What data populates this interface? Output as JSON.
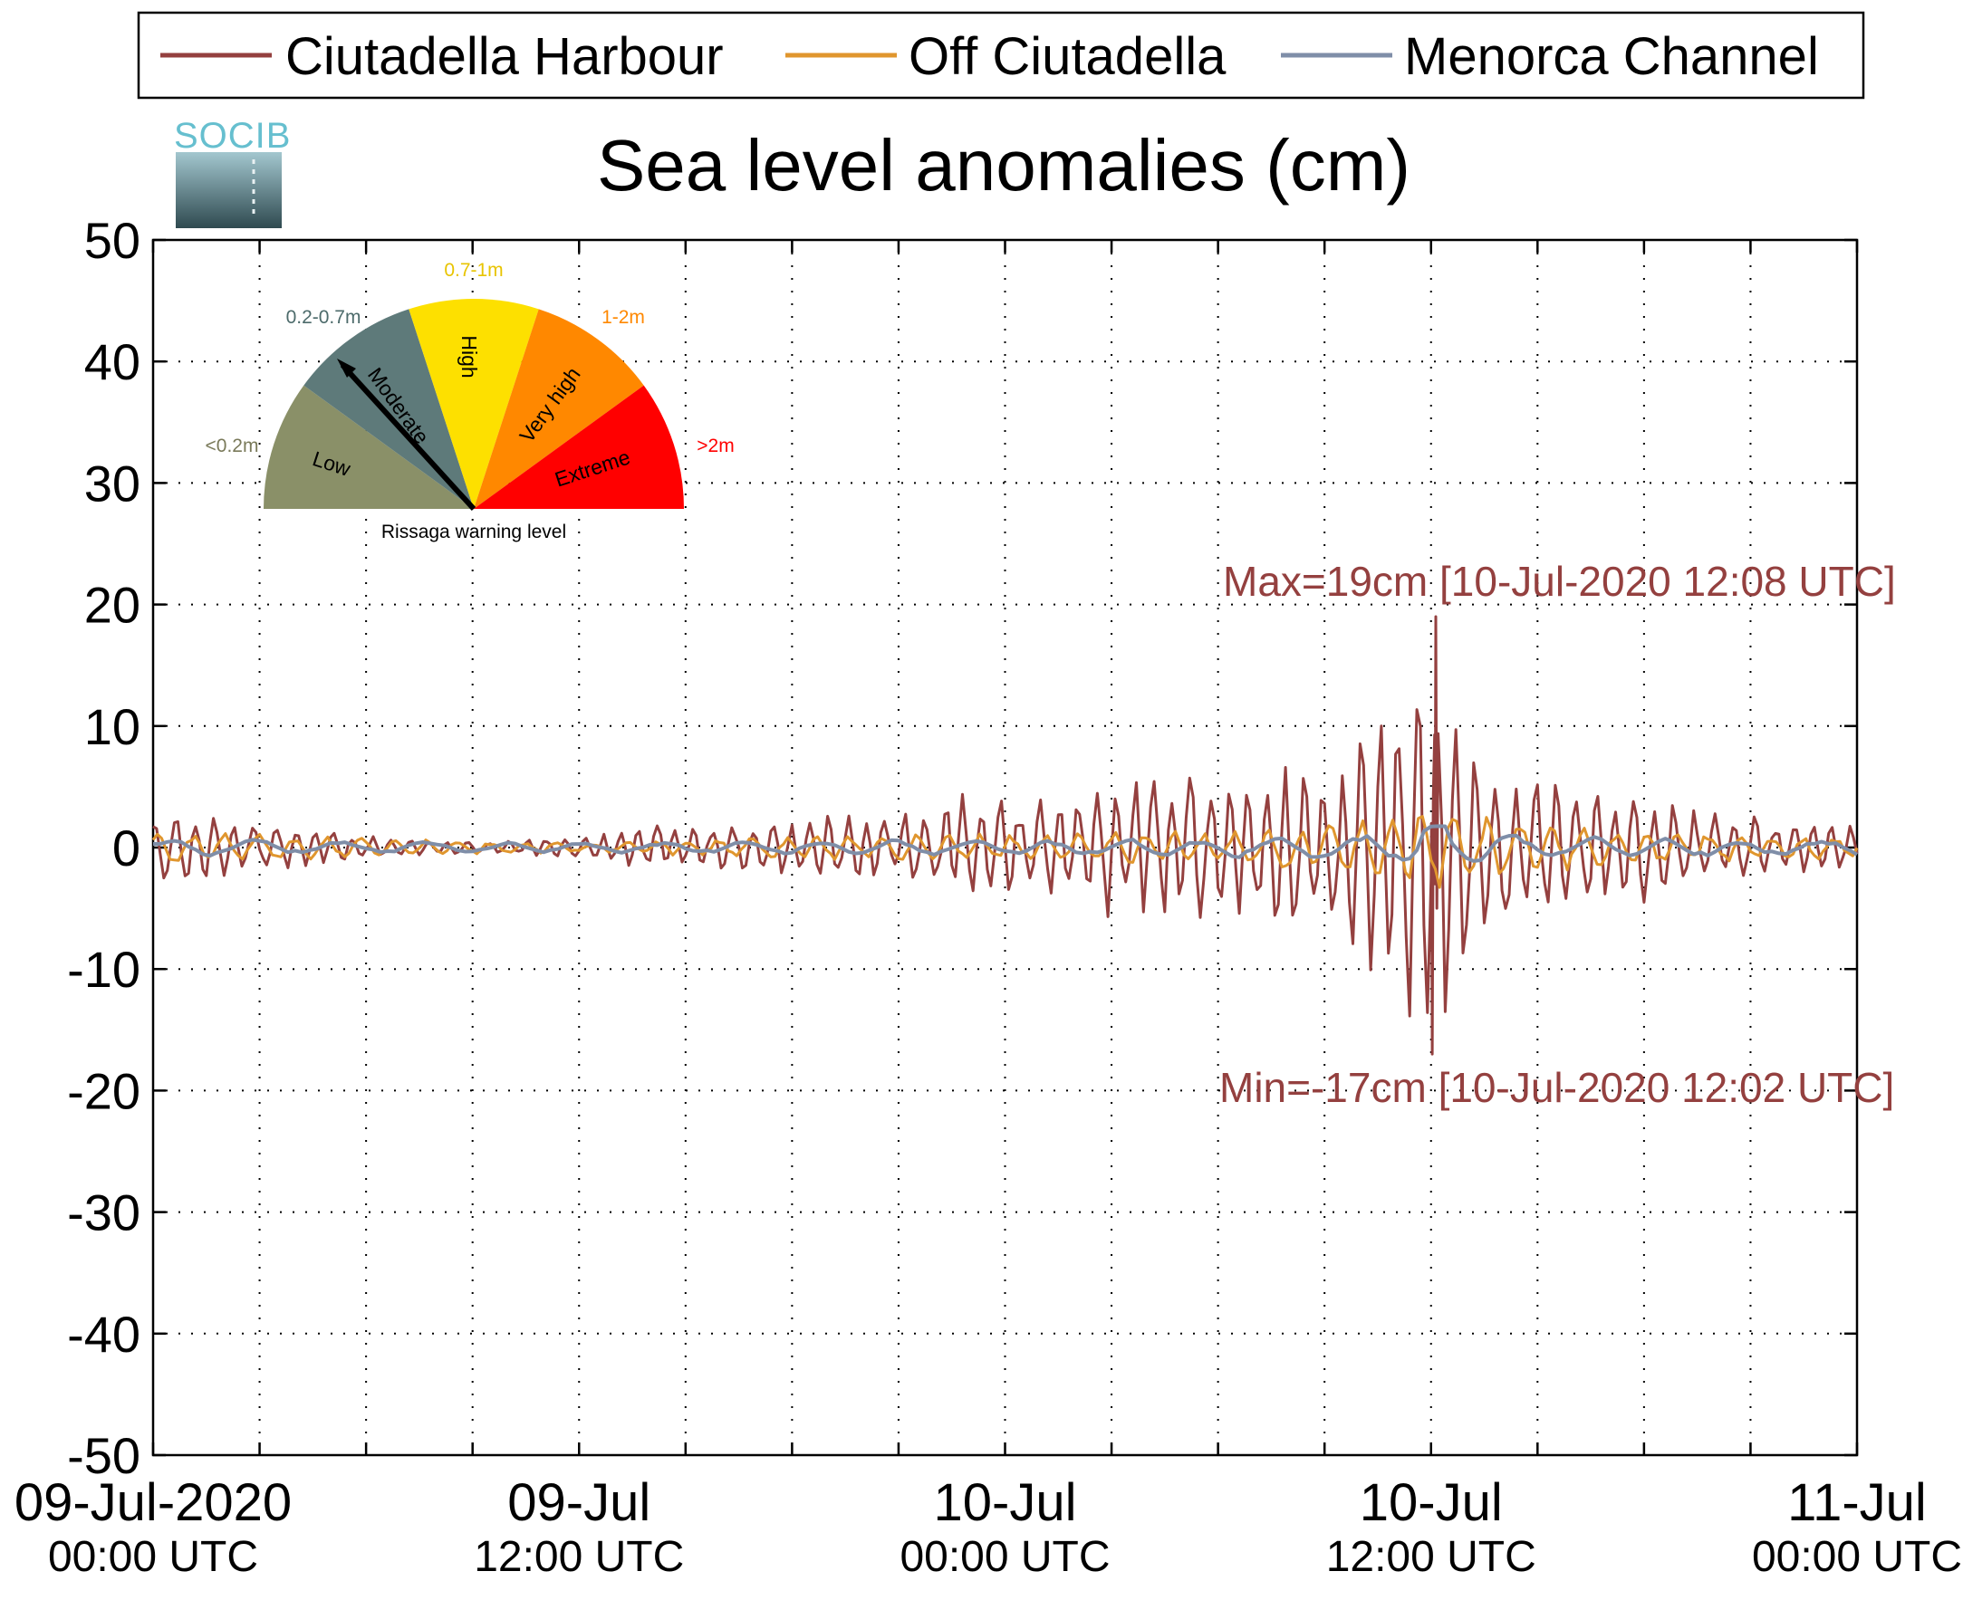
{
  "colors": {
    "harbour": "#94403f",
    "off": "#e0962e",
    "channel": "#7f8ea8"
  },
  "logo": {
    "text": "SOCIB"
  },
  "gauge": {
    "title": "Rissaga warning level",
    "sectors": [
      {
        "label": "Low",
        "range": "<0.2m",
        "color": "#8a9068"
      },
      {
        "label": "Moderate",
        "range": "0.2-0.7m",
        "color": "#5e7a7a"
      },
      {
        "label": "High",
        "range": "0.7-1m",
        "color": "#fde000"
      },
      {
        "label": "Very high",
        "range": "1-2m",
        "color": "#ff8800"
      },
      {
        "label": "Extreme",
        "range": ">2m",
        "color": "#ff0000"
      }
    ],
    "current_level": "Moderate"
  },
  "chart_data": {
    "type": "line",
    "title": "Sea level anomalies (cm)",
    "xlabel": "",
    "ylabel": "",
    "ylim": [
      -50,
      50
    ],
    "yticks": [
      50,
      40,
      30,
      20,
      10,
      0,
      -10,
      -20,
      -30,
      -40,
      -50
    ],
    "xlim": [
      "09-Jul-2020 00:00 UTC",
      "11-Jul-2020 00:00 UTC"
    ],
    "xticks": [
      {
        "date": "09-Jul-2020",
        "time": "00:00 UTC"
      },
      {
        "date": "09-Jul",
        "time": "12:00 UTC"
      },
      {
        "date": "10-Jul",
        "time": "00:00 UTC"
      },
      {
        "date": "10-Jul",
        "time": "12:00 UTC"
      },
      {
        "date": "11-Jul",
        "time": "00:00 UTC"
      }
    ],
    "grid": true,
    "legend_position": "top",
    "series": [
      {
        "name": "Ciutadella Harbour",
        "x": [
          "09-Jul 00:00",
          "09-Jul 01:00",
          "09-Jul 02:00",
          "09-Jul 03:00",
          "09-Jul 04:00",
          "09-Jul 05:00",
          "09-Jul 06:00",
          "09-Jul 07:00",
          "09-Jul 08:00",
          "09-Jul 09:00",
          "09-Jul 10:00",
          "09-Jul 11:00",
          "09-Jul 12:00",
          "09-Jul 13:00",
          "09-Jul 14:00",
          "09-Jul 15:00",
          "09-Jul 16:00",
          "09-Jul 17:00",
          "09-Jul 18:00",
          "09-Jul 19:00",
          "09-Jul 20:00",
          "09-Jul 21:00",
          "09-Jul 22:00",
          "09-Jul 23:00",
          "10-Jul 00:00",
          "10-Jul 01:00",
          "10-Jul 02:00",
          "10-Jul 03:00",
          "10-Jul 04:00",
          "10-Jul 05:00",
          "10-Jul 06:00",
          "10-Jul 07:00",
          "10-Jul 08:00",
          "10-Jul 09:00",
          "10-Jul 10:00",
          "10-Jul 11:00",
          "10-Jul 11:30",
          "10-Jul 12:02",
          "10-Jul 12:08",
          "10-Jul 12:30",
          "10-Jul 13:00",
          "10-Jul 14:00",
          "10-Jul 15:00",
          "10-Jul 16:00",
          "10-Jul 17:00",
          "10-Jul 18:00",
          "10-Jul 19:00",
          "10-Jul 20:00",
          "10-Jul 21:00",
          "10-Jul 22:00",
          "10-Jul 23:00",
          "10-Jul 24:00"
        ],
        "amplitude": [
          3.5,
          3.5,
          2.5,
          2,
          2,
          1.5,
          1,
          0.8,
          0.6,
          0.5,
          0.6,
          0.8,
          1,
          1.5,
          2,
          2,
          2,
          2.5,
          2.5,
          3,
          3,
          3,
          4,
          5,
          4,
          4,
          5,
          6,
          6,
          6,
          7,
          7,
          7,
          8,
          10,
          15,
          18,
          17,
          19,
          15,
          10,
          7,
          6,
          6,
          5,
          5,
          4,
          3,
          3,
          2,
          2,
          2
        ],
        "max": 19,
        "max_time": "10-Jul-2020 12:08 UTC",
        "min": -17,
        "min_time": "10-Jul-2020 12:02 UTC"
      },
      {
        "name": "Off Ciutadella",
        "x": [
          "09-Jul 00:00",
          "09-Jul 06:00",
          "09-Jul 12:00",
          "09-Jul 18:00",
          "10-Jul 00:00",
          "10-Jul 06:00",
          "10-Jul 09:00",
          "10-Jul 11:00",
          "10-Jul 12:00",
          "10-Jul 13:00",
          "10-Jul 15:00",
          "10-Jul 18:00",
          "10-Jul 24:00"
        ],
        "amplitude": [
          1.5,
          0.8,
          0.4,
          1,
          1.2,
          1.5,
          2,
          3,
          4,
          3,
          2,
          1.5,
          1
        ]
      },
      {
        "name": "Menorca Channel",
        "x": [
          "09-Jul 00:00",
          "09-Jul 06:00",
          "09-Jul 12:00",
          "09-Jul 18:00",
          "10-Jul 00:00",
          "10-Jul 06:00",
          "10-Jul 09:00",
          "10-Jul 11:00",
          "10-Jul 12:00",
          "10-Jul 13:00",
          "10-Jul 15:00",
          "10-Jul 18:00",
          "10-Jul 24:00"
        ],
        "amplitude": [
          0.8,
          0.5,
          0.4,
          0.6,
          0.7,
          0.8,
          1,
          1.5,
          3,
          1.5,
          1,
          0.8,
          0.7
        ]
      }
    ],
    "annotations": [
      {
        "text": "Max=19cm [10-Jul-2020 12:08 UTC]"
      },
      {
        "text": "Min=-17cm [10-Jul-2020 12:02 UTC]"
      }
    ]
  }
}
